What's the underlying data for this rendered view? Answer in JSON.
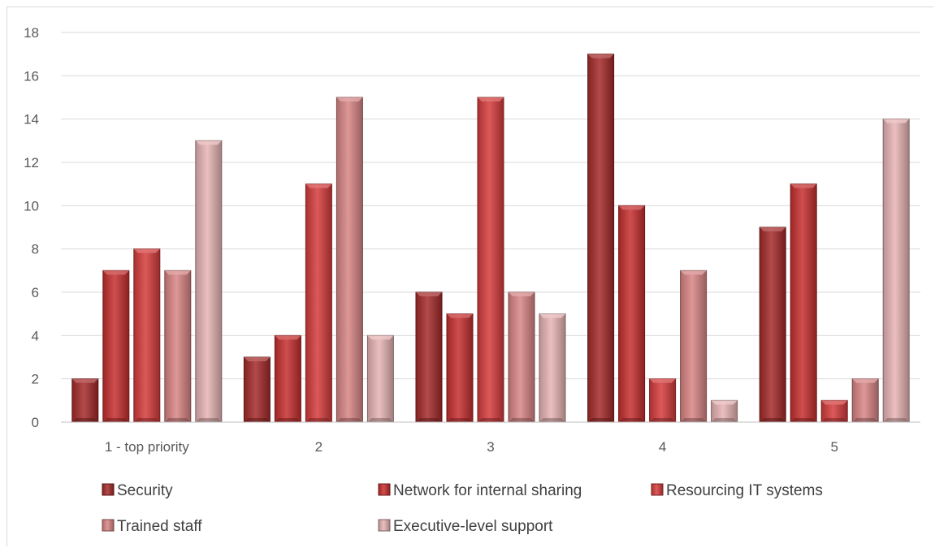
{
  "chart_data": {
    "type": "bar",
    "categories": [
      "1 - top priority",
      "2",
      "3",
      "4",
      "5"
    ],
    "series": [
      {
        "name": "Security",
        "values": [
          2,
          3,
          6,
          17,
          9
        ],
        "color": "#a52a2a"
      },
      {
        "name": "Network for internal sharing",
        "values": [
          7,
          4,
          5,
          10,
          11
        ],
        "color": "#c62f2f"
      },
      {
        "name": "Resourcing IT systems",
        "values": [
          8,
          11,
          15,
          2,
          1
        ],
        "color": "#d63c3c"
      },
      {
        "name": "Trained staff",
        "values": [
          7,
          15,
          6,
          7,
          2
        ],
        "color": "#d98585"
      },
      {
        "name": "Executive-level support",
        "values": [
          13,
          4,
          5,
          1,
          14
        ],
        "color": "#e8b4b4"
      }
    ],
    "yticks": [
      "0",
      "2",
      "4",
      "6",
      "8",
      "10",
      "12",
      "14",
      "16",
      "18"
    ],
    "ylim": [
      0,
      18
    ],
    "grid": true,
    "legend_position": "bottom"
  }
}
